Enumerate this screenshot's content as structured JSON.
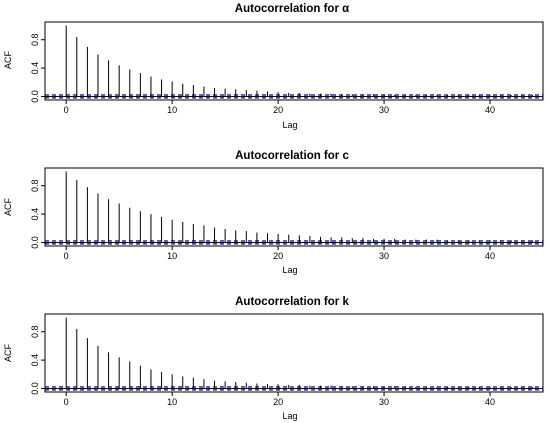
{
  "chart_data": [
    {
      "type": "bar",
      "title": "Autocorrelation for α",
      "xlabel": "Lag",
      "ylabel": "ACF",
      "xlim": [
        -2,
        45
      ],
      "ylim": [
        -0.05,
        1.05
      ],
      "x_ticks": [
        0,
        10,
        20,
        30,
        40
      ],
      "y_ticks": [
        "0.0",
        "0.4",
        "0.8"
      ],
      "lags": [
        0,
        1,
        2,
        3,
        4,
        5,
        6,
        7,
        8,
        9,
        10,
        11,
        12,
        13,
        14,
        15,
        16,
        17,
        18,
        19,
        20,
        21,
        22,
        23,
        24,
        25,
        26,
        27,
        28,
        29,
        30,
        31,
        32,
        33,
        34,
        35,
        36,
        37,
        38,
        39,
        40,
        41,
        42,
        43,
        44
      ],
      "values": [
        1.0,
        0.84,
        0.7,
        0.59,
        0.51,
        0.44,
        0.38,
        0.33,
        0.28,
        0.24,
        0.21,
        0.18,
        0.16,
        0.14,
        0.12,
        0.11,
        0.1,
        0.09,
        0.08,
        0.07,
        0.06,
        0.05,
        0.05,
        0.04,
        0.04,
        0.04,
        0.03,
        0.03,
        0.03,
        0.03,
        0.03,
        0.02,
        0.02,
        0.02,
        0.02,
        0.02,
        0.02,
        0.02,
        0.02,
        0.02,
        0.02,
        0.02,
        0.02,
        0.02,
        0.02
      ],
      "ci": 0.02,
      "ci_color": "#00008b",
      "grid": false
    },
    {
      "type": "bar",
      "title": "Autocorrelation for c",
      "xlabel": "Lag",
      "ylabel": "ACF",
      "xlim": [
        -2,
        45
      ],
      "ylim": [
        -0.05,
        1.05
      ],
      "x_ticks": [
        0,
        10,
        20,
        30,
        40
      ],
      "y_ticks": [
        "0.0",
        "0.4",
        "0.8"
      ],
      "lags": [
        0,
        1,
        2,
        3,
        4,
        5,
        6,
        7,
        8,
        9,
        10,
        11,
        12,
        13,
        14,
        15,
        16,
        17,
        18,
        19,
        20,
        21,
        22,
        23,
        24,
        25,
        26,
        27,
        28,
        29,
        30,
        31,
        32,
        33,
        34,
        35,
        36,
        37,
        38,
        39,
        40,
        41,
        42,
        43,
        44
      ],
      "values": [
        1.0,
        0.88,
        0.78,
        0.69,
        0.61,
        0.55,
        0.49,
        0.44,
        0.4,
        0.36,
        0.32,
        0.29,
        0.26,
        0.24,
        0.21,
        0.19,
        0.17,
        0.16,
        0.14,
        0.13,
        0.12,
        0.11,
        0.1,
        0.09,
        0.08,
        0.07,
        0.07,
        0.06,
        0.06,
        0.05,
        0.05,
        0.05,
        0.04,
        0.04,
        0.04,
        0.04,
        0.03,
        0.03,
        0.03,
        0.03,
        0.03,
        0.03,
        0.03,
        0.03,
        0.03
      ],
      "ci": 0.02,
      "ci_color": "#00008b",
      "grid": false
    },
    {
      "type": "bar",
      "title": "Autocorrelation for k",
      "xlabel": "Lag",
      "ylabel": "ACF",
      "xlim": [
        -2,
        45
      ],
      "ylim": [
        -0.05,
        1.05
      ],
      "x_ticks": [
        0,
        10,
        20,
        30,
        40
      ],
      "y_ticks": [
        "0.0",
        "0.4",
        "0.8"
      ],
      "lags": [
        0,
        1,
        2,
        3,
        4,
        5,
        6,
        7,
        8,
        9,
        10,
        11,
        12,
        13,
        14,
        15,
        16,
        17,
        18,
        19,
        20,
        21,
        22,
        23,
        24,
        25,
        26,
        27,
        28,
        29,
        30,
        31,
        32,
        33,
        34,
        35,
        36,
        37,
        38,
        39,
        40,
        41,
        42,
        43,
        44
      ],
      "values": [
        1.0,
        0.84,
        0.71,
        0.6,
        0.51,
        0.44,
        0.38,
        0.32,
        0.27,
        0.23,
        0.2,
        0.17,
        0.15,
        0.13,
        0.11,
        0.1,
        0.09,
        0.08,
        0.07,
        0.06,
        0.06,
        0.05,
        0.05,
        0.04,
        0.04,
        0.04,
        0.03,
        0.03,
        0.03,
        0.03,
        0.03,
        0.03,
        0.03,
        0.02,
        0.02,
        0.02,
        0.02,
        0.02,
        0.02,
        0.02,
        0.02,
        0.02,
        0.02,
        0.02,
        0.02
      ],
      "ci": 0.02,
      "ci_color": "#00008b",
      "grid": false
    }
  ]
}
